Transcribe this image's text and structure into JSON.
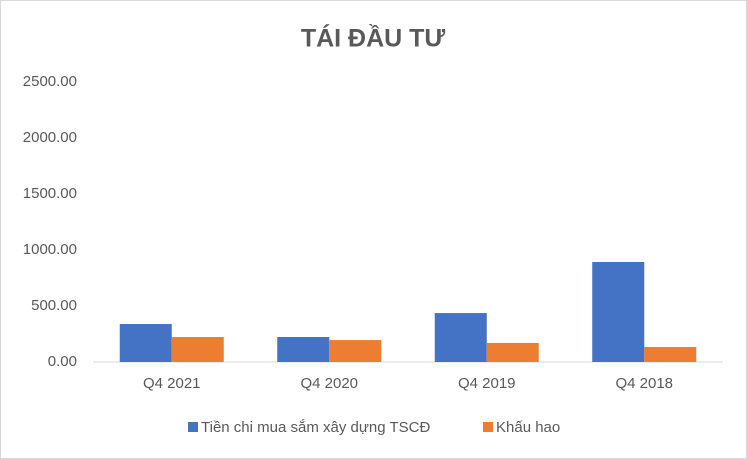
{
  "chart_data": {
    "type": "bar",
    "title": "TÁI ĐẦU TƯ",
    "categories": [
      "Q4 2021",
      "Q4 2020",
      "Q4 2019",
      "Q4 2018"
    ],
    "series": [
      {
        "name": "Tiền chi mua sắm xây dựng TSCĐ",
        "color": "#4472c4",
        "values": [
          339,
          223,
          437,
          893
        ]
      },
      {
        "name": "Khấu hao",
        "color": "#ed7d31",
        "values": [
          223,
          196,
          170,
          134
        ]
      }
    ],
    "ylim": [
      0,
      2500
    ],
    "yticks": [
      {
        "value": 0,
        "label": "0.00"
      },
      {
        "value": 500,
        "label": "500.00"
      },
      {
        "value": 1000,
        "label": "1000.00"
      },
      {
        "value": 1500,
        "label": "1500.00"
      },
      {
        "value": 2000,
        "label": "2000.00"
      },
      {
        "value": 2500,
        "label": "2500.00"
      }
    ],
    "grid": false,
    "legend": "bottom"
  }
}
